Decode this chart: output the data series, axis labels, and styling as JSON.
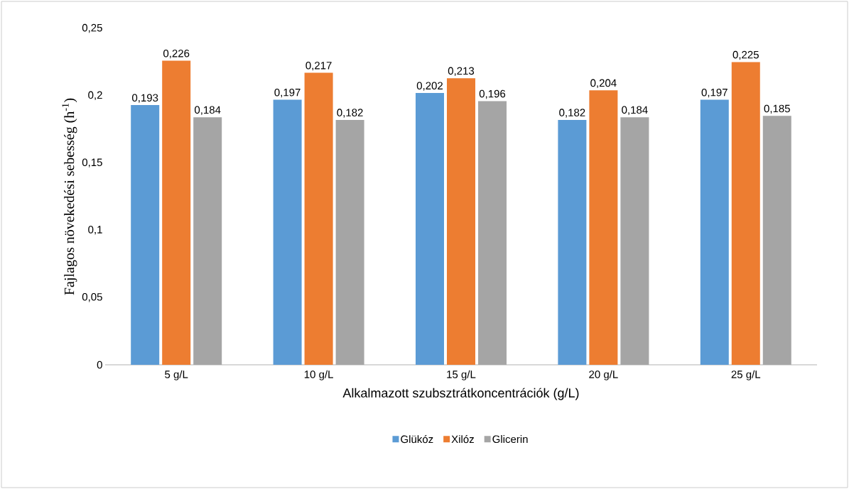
{
  "chart_data": {
    "type": "bar",
    "xlabel": "Alkalmazott szubsztrátkoncentrációk (g/L)",
    "ylabel": "Fajlagos növekedési sebesség (h$^{-1}$)",
    "categories": [
      "5 g/L",
      "10 g/L",
      "15 g/L",
      "20 g/L",
      "25 g/L"
    ],
    "series": [
      {
        "name": "Glükóz",
        "color": "#5b9bd5",
        "values": [
          0.193,
          0.197,
          0.202,
          0.182,
          0.197
        ],
        "value_labels": [
          "0,193",
          "0,197",
          "0,202",
          "0,182",
          "0,197"
        ]
      },
      {
        "name": "Xilóz",
        "color": "#ed7d31",
        "values": [
          0.226,
          0.217,
          0.213,
          0.204,
          0.225
        ],
        "value_labels": [
          "0,226",
          "0,217",
          "0,213",
          "0,204",
          "0,225"
        ]
      },
      {
        "name": "Glicerin",
        "color": "#a5a5a5",
        "values": [
          0.184,
          0.182,
          0.196,
          0.184,
          0.185
        ],
        "value_labels": [
          "0,184",
          "0,182",
          "0,196",
          "0,184",
          "0,185"
        ]
      }
    ],
    "ylim": [
      0,
      0.25
    ],
    "yticks": [
      {
        "value": 0,
        "label": "0"
      },
      {
        "value": 0.05,
        "label": "0,05"
      },
      {
        "value": 0.1,
        "label": "0,1"
      },
      {
        "value": 0.15,
        "label": "0,15"
      },
      {
        "value": 0.2,
        "label": "0,2"
      },
      {
        "value": 0.25,
        "label": "0,25"
      }
    ],
    "legend": "bottom"
  }
}
